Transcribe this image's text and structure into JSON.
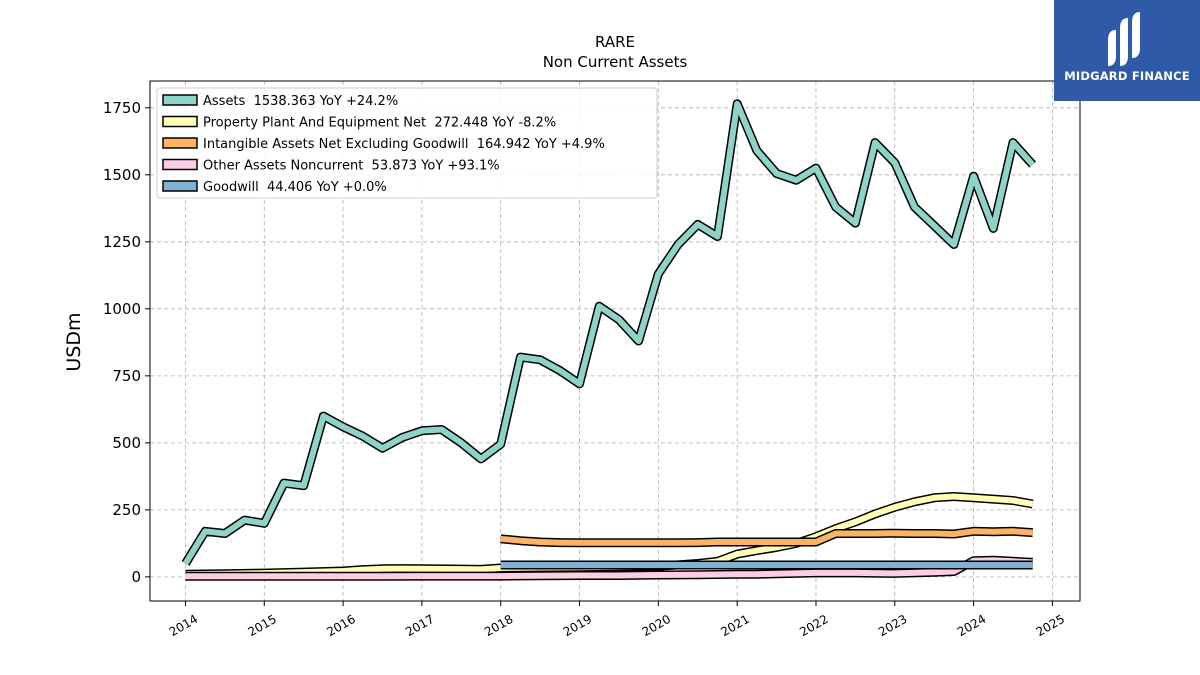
{
  "chart_data": {
    "type": "line",
    "title": "RARE",
    "subtitle": "Non Current  Assets",
    "ylabel": "USDm",
    "xlabel": "",
    "xlim": [
      2013.55,
      2025.35
    ],
    "ylim": [
      -90,
      1850
    ],
    "yticks": [
      0,
      250,
      500,
      750,
      1000,
      1250,
      1500,
      1750
    ],
    "xticks": [
      2014,
      2015,
      2016,
      2017,
      2018,
      2019,
      2020,
      2021,
      2022,
      2023,
      2024,
      2025
    ],
    "grid": true,
    "legend_position": "top-left",
    "series": [
      {
        "name": "Assets  1538.363 YoY +24.2%",
        "color": "#8dd3c7",
        "x": [
          2014.0,
          2014.25,
          2014.5,
          2014.75,
          2015.0,
          2015.25,
          2015.5,
          2015.75,
          2016.0,
          2016.25,
          2016.5,
          2016.75,
          2017.0,
          2017.25,
          2017.5,
          2017.75,
          2018.0,
          2018.25,
          2018.5,
          2018.75,
          2019.0,
          2019.25,
          2019.5,
          2019.75,
          2020.0,
          2020.25,
          2020.5,
          2020.75,
          2021.0,
          2021.25,
          2021.5,
          2021.75,
          2022.0,
          2022.25,
          2022.5,
          2022.75,
          2023.0,
          2023.25,
          2023.5,
          2023.75,
          2024.0,
          2024.25,
          2024.5,
          2024.75
        ],
        "values": [
          50,
          170,
          162,
          212,
          200,
          350,
          340,
          600,
          560,
          525,
          480,
          520,
          545,
          550,
          500,
          440,
          495,
          820,
          810,
          770,
          720,
          1010,
          960,
          880,
          1130,
          1240,
          1315,
          1270,
          1765,
          1590,
          1505,
          1480,
          1525,
          1380,
          1320,
          1620,
          1545,
          1380,
          1310,
          1240,
          1495,
          1300,
          1620,
          1538
        ]
      },
      {
        "name": "Property Plant And Equipment Net  272.448 YoY -8.2%",
        "color": "#ffffb3",
        "x": [
          2014.0,
          2014.5,
          2015.0,
          2015.5,
          2016.0,
          2016.25,
          2016.5,
          2016.75,
          2017.0,
          2017.5,
          2017.75,
          2018.0,
          2018.5,
          2019.0,
          2019.5,
          2020.0,
          2020.5,
          2020.75,
          2021.0,
          2021.25,
          2021.5,
          2021.75,
          2022.0,
          2022.25,
          2022.5,
          2022.75,
          2023.0,
          2023.25,
          2023.5,
          2023.75,
          2024.0,
          2024.25,
          2024.5,
          2024.75
        ],
        "values": [
          10,
          12,
          14,
          18,
          22,
          27,
          30,
          31,
          30,
          29,
          28,
          33,
          35,
          36,
          38,
          40,
          50,
          58,
          85,
          98,
          110,
          125,
          150,
          180,
          205,
          235,
          260,
          280,
          295,
          300,
          295,
          290,
          285,
          272
        ]
      },
      {
        "name": "Intangible Assets Net Excluding Goodwill  164.942 YoY +4.9%",
        "color": "#fdb462",
        "x": [
          2018.0,
          2018.25,
          2018.5,
          2018.75,
          2019.0,
          2019.5,
          2020.0,
          2020.25,
          2020.5,
          2020.75,
          2021.0,
          2021.5,
          2022.0,
          2022.25,
          2022.5,
          2022.75,
          2023.0,
          2023.25,
          2023.5,
          2023.75,
          2024.0,
          2024.25,
          2024.5,
          2024.75
        ],
        "values": [
          142,
          135,
          130,
          128,
          127,
          127,
          127,
          127,
          128,
          130,
          130,
          130,
          130,
          162,
          162,
          162,
          163,
          162,
          162,
          160,
          170,
          168,
          170,
          165
        ]
      },
      {
        "name": "Other Assets Noncurrent  53.873 YoY +93.1%",
        "color": "#fccde5",
        "x": [
          2014.0,
          2014.5,
          2015.0,
          2016.0,
          2017.0,
          2017.5,
          2018.0,
          2018.5,
          2019.0,
          2019.5,
          2020.0,
          2020.5,
          2021.0,
          2021.25,
          2021.5,
          2022.0,
          2022.5,
          2023.0,
          2023.5,
          2023.75,
          2024.0,
          2024.25,
          2024.5,
          2024.75
        ],
        "values": [
          2,
          2,
          2,
          2,
          3,
          3,
          3,
          4,
          5,
          5,
          7,
          8,
          10,
          10,
          12,
          15,
          15,
          13,
          17,
          20,
          60,
          62,
          58,
          54
        ]
      },
      {
        "name": "Goodwill  44.406 YoY +0.0%",
        "color": "#80b1d3",
        "x": [
          2018.0,
          2024.75
        ],
        "values": [
          44.406,
          44.406
        ]
      }
    ]
  },
  "logo": {
    "text": "MIDGARD FINANCE"
  }
}
